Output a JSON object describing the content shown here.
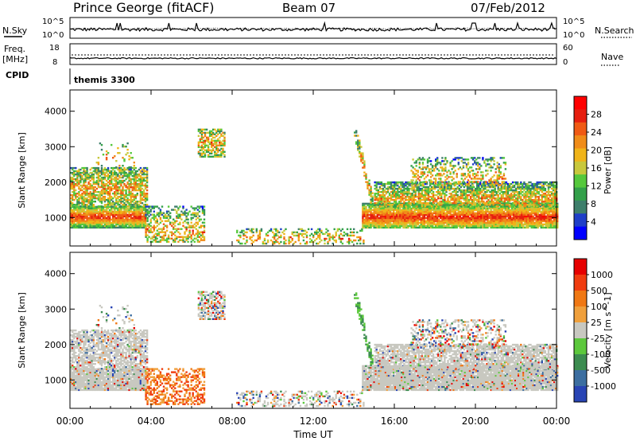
{
  "header": {
    "station": "Prince George (fitACF)",
    "beam": "Beam 07",
    "date": "07/Feb/2012"
  },
  "top_panel": {
    "left_label": "N.Sky",
    "right_label": "N.Search",
    "left_ticks": [
      "10^5",
      "10^0"
    ],
    "right_ticks": [
      "10^5",
      "10^0"
    ]
  },
  "freq_panel": {
    "left_label_1": "Freq.",
    "left_label_2": "[MHz]",
    "right_label": "Nave",
    "left_ticks": [
      "18",
      "8"
    ],
    "right_ticks": [
      "60",
      "0"
    ]
  },
  "cpid_panel": {
    "label": "CPID",
    "value": "themis 3300"
  },
  "chart_data": [
    {
      "type": "heatmap",
      "title": "Power",
      "ylabel": "Slant Range [km]",
      "yticks": [
        "1000",
        "2000",
        "3000",
        "4000"
      ],
      "ylim": [
        200,
        4600
      ],
      "colorbar_label": "Power [dB]",
      "colorbar_ticks": [
        "28",
        "24",
        "20",
        "16",
        "12",
        "8",
        "4"
      ],
      "colorbar_colors": [
        "#0000ff",
        "#1f3fc8",
        "#3e7f6b",
        "#33a04a",
        "#55c83c",
        "#c8c83c",
        "#f0b419",
        "#f08c19",
        "#f05a14",
        "#e61e0f",
        "#ff0000"
      ]
    },
    {
      "type": "heatmap",
      "title": "Velocity",
      "ylabel": "Slant Range [km]",
      "yticks": [
        "1000",
        "2000",
        "3000",
        "4000"
      ],
      "ylim": [
        200,
        4600
      ],
      "colorbar_label": "Velocity [m s^-1]",
      "colorbar_ticks": [
        "1000",
        "500",
        "100",
        "25",
        "-25",
        "-100",
        "-500",
        "-1000"
      ],
      "colorbar_colors": [
        "#2844b4",
        "#3c6ea0",
        "#3c8c50",
        "#5cc83c",
        "#c8c8c0",
        "#f0a03c",
        "#f07814",
        "#f03c0f",
        "#e60000"
      ]
    }
  ],
  "x_axis": {
    "ticks": [
      "00:00",
      "04:00",
      "08:00",
      "12:00",
      "16:00",
      "20:00",
      "00:00"
    ],
    "label": "Time UT"
  },
  "colors": {
    "ground_scatter": "#c8c8c0",
    "accent_red": "#ff0000",
    "accent_blue": "#0000ff"
  }
}
